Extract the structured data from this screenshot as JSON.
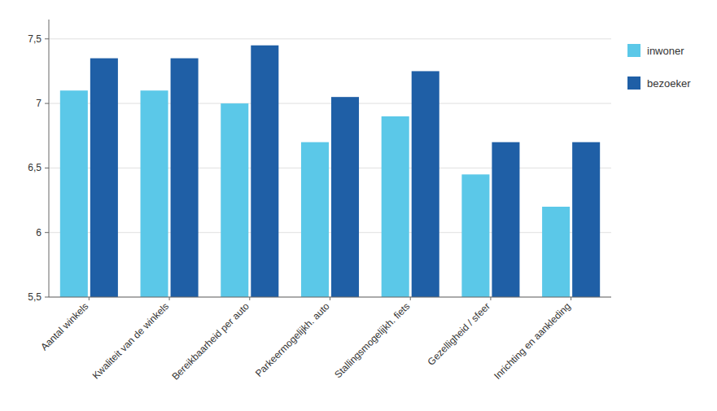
{
  "chart_data": {
    "type": "bar",
    "categories": [
      "Aantal winkels",
      "Kwaliteit van de winkels",
      "Bereikbaarheid per auto",
      "Parkeermogelijkh. auto",
      "Stallingsmogelijkh. fiets",
      "Gezelligheid / sfeer",
      "Inrichting en aankleding"
    ],
    "series": [
      {
        "name": "inwoner",
        "color": "#5bc8e8",
        "values": [
          7.1,
          7.1,
          7.0,
          6.7,
          6.9,
          6.45,
          6.2
        ]
      },
      {
        "name": "bezoeker",
        "color": "#1f5fa6",
        "values": [
          7.35,
          7.35,
          7.45,
          7.05,
          7.25,
          6.7,
          6.7
        ]
      }
    ],
    "ylim": [
      5.5,
      7.65
    ],
    "yticks": [
      {
        "value": 5.5,
        "label": "5,5"
      },
      6,
      {
        "value": 6.5,
        "label": "6,5"
      },
      7,
      {
        "value": 7.5,
        "label": "7,5"
      }
    ],
    "grid": true,
    "legend": "right"
  }
}
